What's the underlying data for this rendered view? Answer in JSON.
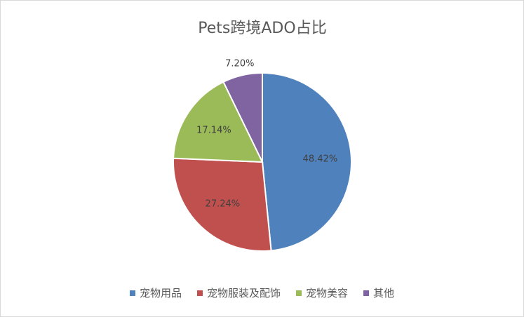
{
  "chart_data": {
    "type": "pie",
    "title": "Pets跨境ADO占比",
    "categories": [
      "宠物用品",
      "宠物服装及配饰",
      "宠物美容",
      "其他"
    ],
    "values": [
      48.42,
      27.24,
      17.14,
      7.2
    ],
    "value_labels": [
      "48.42%",
      "27.24%",
      "17.14%",
      "7.20%"
    ],
    "colors": [
      "#4f81bd",
      "#c0504d",
      "#9bbb59",
      "#8064a2"
    ],
    "legend": "bottom"
  }
}
